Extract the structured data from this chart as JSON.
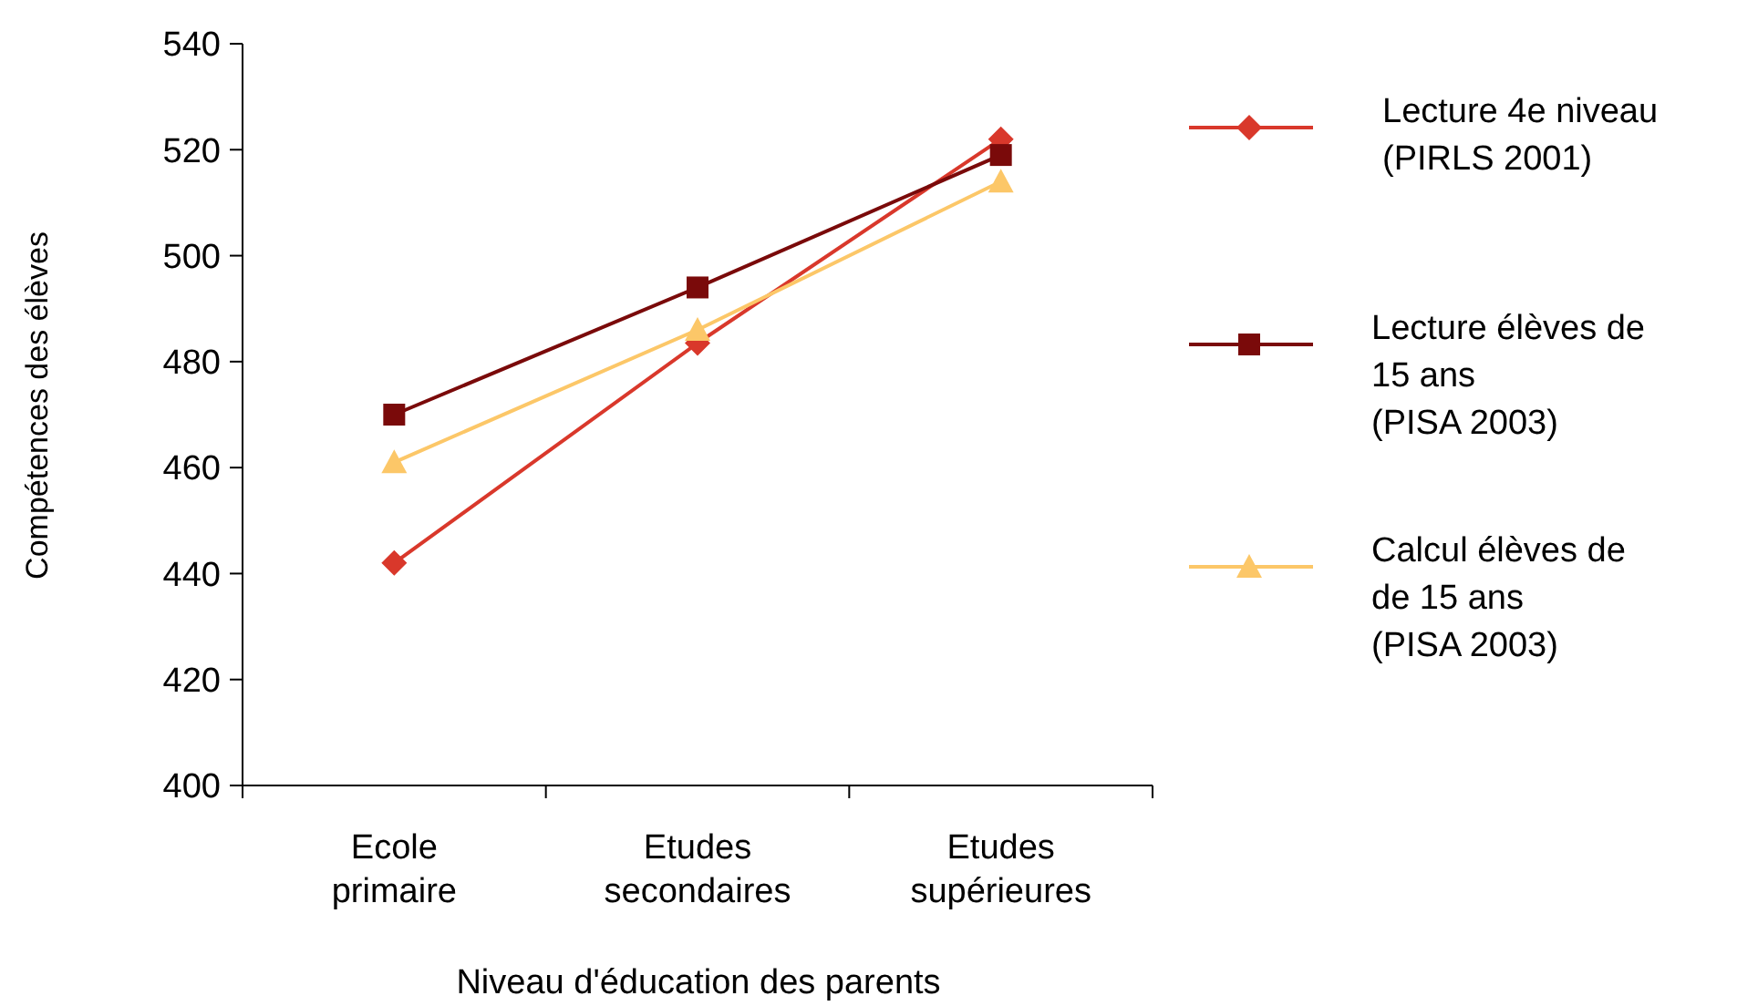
{
  "chart_data": {
    "type": "line",
    "xlabel": "Niveau d'éducation des parents",
    "ylabel": "Compétences des élèves",
    "categories": [
      "Ecole\nprimaire",
      "Etudes\nsecondaires",
      "Etudes\nsupérieures"
    ],
    "ylim": [
      400,
      540
    ],
    "yticks": [
      400,
      420,
      440,
      460,
      480,
      500,
      520,
      540
    ],
    "grid": false,
    "legend": "right",
    "series": [
      {
        "name": "Lecture 4e niveau\n(PIRLS 2001)",
        "color": "#d9382b",
        "marker": "diamond",
        "values": [
          442,
          483.5,
          522
        ]
      },
      {
        "name": "Lecture élèves de\n15 ans\n(PISA 2003)",
        "color": "#7a0a0a",
        "marker": "square",
        "values": [
          470,
          494,
          519
        ]
      },
      {
        "name": "Calcul élèves de\nde 15 ans\n(PISA 2003)",
        "color": "#fcc768",
        "marker": "triangle",
        "values": [
          461,
          486,
          514
        ]
      }
    ]
  }
}
